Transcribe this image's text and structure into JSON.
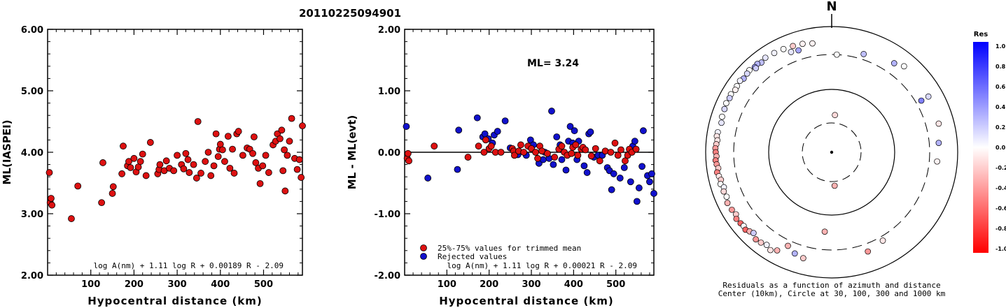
{
  "title": "20110225094901",
  "chart_data": [
    {
      "type": "scatter",
      "panel": "left",
      "ylabel": "ML(IASPEI)",
      "xlabel": "Hypocentral distance (km)",
      "xlim": [
        0,
        590
      ],
      "ylim": [
        2.0,
        6.0
      ],
      "yticks": [
        "2.00",
        "3.00",
        "4.00",
        "5.00",
        "6.00"
      ],
      "xticks": [
        "100",
        "200",
        "300",
        "400",
        "500"
      ],
      "formula": "log A(nm) + 1.11 log R + 0.00189 R - 2.09",
      "points": [
        [
          4,
          3.67
        ],
        [
          6,
          3.18
        ],
        [
          8,
          3.25
        ],
        [
          10,
          3.14
        ],
        [
          55,
          2.92
        ],
        [
          70,
          3.45
        ],
        [
          125,
          3.18
        ],
        [
          128,
          3.83
        ],
        [
          150,
          3.33
        ],
        [
          152,
          3.44
        ],
        [
          172,
          3.65
        ],
        [
          175,
          4.1
        ],
        [
          185,
          3.78
        ],
        [
          188,
          3.85
        ],
        [
          192,
          3.75
        ],
        [
          200,
          3.9
        ],
        [
          205,
          3.68
        ],
        [
          210,
          3.76
        ],
        [
          215,
          3.85
        ],
        [
          220,
          3.97
        ],
        [
          228,
          3.62
        ],
        [
          238,
          4.16
        ],
        [
          255,
          3.65
        ],
        [
          258,
          3.72
        ],
        [
          260,
          3.8
        ],
        [
          270,
          3.7
        ],
        [
          275,
          3.86
        ],
        [
          282,
          3.74
        ],
        [
          292,
          3.7
        ],
        [
          300,
          3.95
        ],
        [
          310,
          3.8
        ],
        [
          315,
          3.73
        ],
        [
          320,
          3.98
        ],
        [
          325,
          3.88
        ],
        [
          328,
          3.67
        ],
        [
          338,
          3.8
        ],
        [
          345,
          3.58
        ],
        [
          348,
          4.5
        ],
        [
          355,
          3.66
        ],
        [
          365,
          3.85
        ],
        [
          372,
          4.0
        ],
        [
          378,
          3.62
        ],
        [
          385,
          3.78
        ],
        [
          390,
          4.3
        ],
        [
          395,
          3.93
        ],
        [
          398,
          4.05
        ],
        [
          400,
          4.13
        ],
        [
          405,
          4.04
        ],
        [
          410,
          3.85
        ],
        [
          418,
          4.26
        ],
        [
          422,
          3.74
        ],
        [
          428,
          4.05
        ],
        [
          432,
          3.66
        ],
        [
          438,
          4.3
        ],
        [
          442,
          4.34
        ],
        [
          452,
          3.95
        ],
        [
          462,
          4.07
        ],
        [
          468,
          4.05
        ],
        [
          475,
          3.98
        ],
        [
          478,
          4.25
        ],
        [
          482,
          3.83
        ],
        [
          488,
          3.74
        ],
        [
          492,
          3.49
        ],
        [
          498,
          3.78
        ],
        [
          505,
          3.95
        ],
        [
          512,
          3.67
        ],
        [
          522,
          4.12
        ],
        [
          528,
          4.18
        ],
        [
          532,
          4.3
        ],
        [
          538,
          4.22
        ],
        [
          542,
          4.36
        ],
        [
          545,
          3.7
        ],
        [
          548,
          4.04
        ],
        [
          550,
          3.37
        ],
        [
          555,
          3.95
        ],
        [
          560,
          4.18
        ],
        [
          565,
          4.55
        ],
        [
          572,
          3.9
        ],
        [
          578,
          3.72
        ],
        [
          583,
          3.88
        ],
        [
          587,
          3.59
        ],
        [
          590,
          4.43
        ]
      ]
    },
    {
      "type": "scatter",
      "panel": "middle",
      "ylabel": "ML - ML(evt)",
      "xlabel": "Hypocentral distance (km)",
      "xlim": [
        0,
        590
      ],
      "ylim": [
        -2.0,
        2.0
      ],
      "yticks": [
        "-2.00",
        "-1.00",
        "0.00",
        "1.00",
        "2.00"
      ],
      "xticks": [
        "100",
        "200",
        "300",
        "400",
        "500"
      ],
      "ml_label": "ML= 3.24",
      "legend": [
        "25%-75% values for trimmed mean",
        "Rejected values"
      ],
      "formula": "log A(nm) + 1.11 log R + 0.00021 R - 2.09",
      "colors": {
        "trimmed": "#dd1111",
        "rejected": "#1111cc"
      },
      "trimmed": [
        [
          6,
          -0.1
        ],
        [
          8,
          -0.02
        ],
        [
          10,
          -0.14
        ],
        [
          70,
          0.1
        ],
        [
          150,
          -0.08
        ],
        [
          175,
          0.1
        ],
        [
          188,
          0.0
        ],
        [
          192,
          0.2
        ],
        [
          200,
          0.06
        ],
        [
          205,
          0.1
        ],
        [
          215,
          0.0
        ],
        [
          228,
          0.0
        ],
        [
          255,
          0.06
        ],
        [
          258,
          0.02
        ],
        [
          260,
          -0.05
        ],
        [
          270,
          0.02
        ],
        [
          275,
          0.12
        ],
        [
          282,
          0.0
        ],
        [
          292,
          0.1
        ],
        [
          300,
          0.06
        ],
        [
          310,
          0.0
        ],
        [
          315,
          -0.1
        ],
        [
          320,
          0.1
        ],
        [
          325,
          0.02
        ],
        [
          338,
          -0.02
        ],
        [
          355,
          -0.08
        ],
        [
          365,
          0.05
        ],
        [
          372,
          0.1
        ],
        [
          378,
          0.0
        ],
        [
          385,
          -0.05
        ],
        [
          395,
          -0.02
        ],
        [
          398,
          0.08
        ],
        [
          405,
          0.12
        ],
        [
          410,
          -0.05
        ],
        [
          418,
          0.05
        ],
        [
          422,
          0.08
        ],
        [
          428,
          0.04
        ],
        [
          442,
          -0.06
        ],
        [
          452,
          0.06
        ],
        [
          462,
          -0.14
        ],
        [
          475,
          0.02
        ],
        [
          488,
          0.0
        ],
        [
          498,
          0.15
        ],
        [
          505,
          -0.05
        ],
        [
          512,
          0.04
        ],
        [
          522,
          -0.14
        ],
        [
          528,
          -0.05
        ],
        [
          532,
          0.05
        ],
        [
          538,
          0.0
        ],
        [
          548,
          0.05
        ]
      ],
      "rejected": [
        [
          4,
          0.42
        ],
        [
          55,
          -0.42
        ],
        [
          125,
          -0.28
        ],
        [
          128,
          0.36
        ],
        [
          172,
          0.56
        ],
        [
          185,
          0.25
        ],
        [
          190,
          0.3
        ],
        [
          198,
          0.22
        ],
        [
          208,
          0.15
        ],
        [
          212,
          0.28
        ],
        [
          220,
          0.34
        ],
        [
          238,
          0.51
        ],
        [
          250,
          0.07
        ],
        [
          268,
          -0.04
        ],
        [
          288,
          -0.05
        ],
        [
          298,
          0.2
        ],
        [
          305,
          0.12
        ],
        [
          318,
          -0.18
        ],
        [
          328,
          -0.12
        ],
        [
          332,
          0.0
        ],
        [
          342,
          -0.1
        ],
        [
          348,
          0.67
        ],
        [
          352,
          -0.2
        ],
        [
          360,
          0.25
        ],
        [
          368,
          0.12
        ],
        [
          372,
          -0.12
        ],
        [
          382,
          -0.29
        ],
        [
          388,
          0.18
        ],
        [
          392,
          0.42
        ],
        [
          398,
          0.15
        ],
        [
          402,
          0.35
        ],
        [
          408,
          -0.12
        ],
        [
          412,
          0.18
        ],
        [
          425,
          -0.22
        ],
        [
          432,
          -0.33
        ],
        [
          436,
          0.3
        ],
        [
          440,
          0.33
        ],
        [
          448,
          -0.08
        ],
        [
          458,
          -0.05
        ],
        [
          468,
          -0.05
        ],
        [
          480,
          -0.25
        ],
        [
          485,
          -0.3
        ],
        [
          490,
          -0.61
        ],
        [
          495,
          -0.35
        ],
        [
          510,
          -0.42
        ],
        [
          520,
          -0.25
        ],
        [
          535,
          -0.48
        ],
        [
          540,
          0.1
        ],
        [
          545,
          0.18
        ],
        [
          550,
          -0.8
        ],
        [
          555,
          -0.58
        ],
        [
          562,
          -0.23
        ],
        [
          565,
          0.35
        ],
        [
          575,
          -0.38
        ],
        [
          580,
          -0.48
        ],
        [
          585,
          -0.35
        ],
        [
          590,
          -0.67
        ]
      ]
    },
    {
      "type": "scatter",
      "panel": "right",
      "polar": true,
      "north_label": "N",
      "rings_km": [
        30,
        100,
        300,
        1000
      ],
      "caption": [
        "Residuals as a function of azimuth and distance",
        "Center (10km), Circle at 30, 100, 300 and 1000 km"
      ],
      "colorbar": {
        "title": "Res",
        "labels": [
          "1.0",
          "0.8",
          "0.6",
          "0.4",
          "0.2",
          "0.0",
          "-0.2",
          "-0.4",
          "-0.6",
          "-0.8",
          "-1.0"
        ],
        "top_color": "#0000ff",
        "mid_color": "#ffffff",
        "bottom_color": "#ff0000"
      },
      "points": [
        [
          5,
          40,
          -0.15
        ],
        [
          175,
          35,
          -0.3
        ],
        [
          3,
          300,
          0.0
        ],
        [
          18,
          380,
          0.25
        ],
        [
          35,
          480,
          0.3
        ],
        [
          40,
          560,
          0.0
        ],
        [
          60,
          540,
          0.15
        ],
        [
          75,
          520,
          -0.1
        ],
        [
          60,
          380,
          0.5
        ],
        [
          85,
          450,
          0.3
        ],
        [
          95,
          420,
          -0.05
        ],
        [
          185,
          170,
          -0.3
        ],
        [
          150,
          360,
          -0.1
        ],
        [
          160,
          420,
          -0.4
        ],
        [
          205,
          380,
          -0.3
        ],
        [
          200,
          460,
          0.3
        ],
        [
          195,
          500,
          -0.2
        ],
        [
          350,
          520,
          -0.05
        ],
        [
          345,
          560,
          -0.05
        ],
        [
          340,
          580,
          -0.2
        ],
        [
          335,
          600,
          0.0
        ],
        [
          330,
          620,
          0.05
        ],
        [
          325,
          640,
          0.1
        ],
        [
          322,
          600,
          0.25
        ],
        [
          320,
          640,
          0.3
        ],
        [
          318,
          620,
          0.4
        ],
        [
          318,
          580,
          0.2
        ],
        [
          315,
          660,
          0.0
        ],
        [
          313,
          640,
          0.15
        ],
        [
          310,
          620,
          0.3
        ],
        [
          308,
          660,
          0.05
        ],
        [
          305,
          640,
          0.0
        ],
        [
          303,
          620,
          -0.05
        ],
        [
          300,
          660,
          0.0
        ],
        [
          298,
          640,
          0.2
        ],
        [
          295,
          660,
          0.0
        ],
        [
          292,
          640,
          0.15
        ],
        [
          288,
          630,
          0.0
        ],
        [
          285,
          600,
          0.1
        ],
        [
          280,
          640,
          0.05
        ],
        [
          278,
          650,
          -0.1
        ],
        [
          276,
          620,
          -0.1
        ],
        [
          274,
          640,
          -0.2
        ],
        [
          272,
          660,
          -0.4
        ],
        [
          270,
          650,
          -0.5
        ],
        [
          268,
          630,
          -0.3
        ],
        [
          266,
          660,
          -0.5
        ],
        [
          264,
          640,
          -0.4
        ],
        [
          262,
          610,
          -0.2
        ],
        [
          260,
          660,
          -0.5
        ],
        [
          258,
          630,
          -0.1
        ],
        [
          256,
          600,
          -0.2
        ],
        [
          254,
          640,
          0.0
        ],
        [
          252,
          580,
          0.05
        ],
        [
          250,
          620,
          -0.15
        ],
        [
          247,
          600,
          0.0
        ],
        [
          244,
          650,
          -0.3
        ],
        [
          240,
          630,
          -0.4
        ],
        [
          237,
          600,
          -0.2
        ],
        [
          235,
          660,
          -0.5
        ],
        [
          232,
          640,
          -0.6
        ],
        [
          230,
          620,
          0.0
        ],
        [
          228,
          650,
          -0.6
        ],
        [
          226,
          600,
          -0.3
        ],
        [
          224,
          560,
          0.2
        ],
        [
          221,
          640,
          -0.4
        ],
        [
          218,
          620,
          -0.2
        ],
        [
          215,
          580,
          0.05
        ],
        [
          212,
          640,
          -0.1
        ],
        [
          209,
          560,
          -0.3
        ],
        [
          342,
          450,
          0.35
        ],
        [
          338,
          470,
          0.1
        ]
      ]
    }
  ]
}
